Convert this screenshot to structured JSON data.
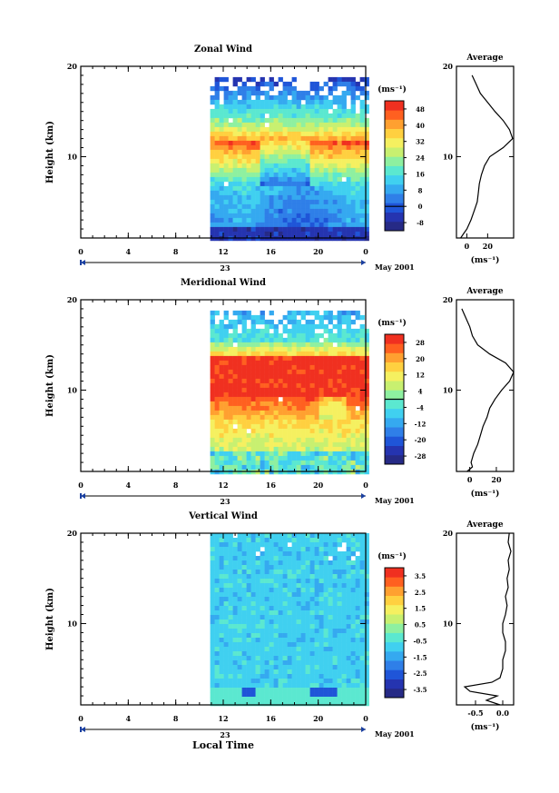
{
  "shared": {
    "xlabel": "Local Time",
    "date_label": "May 2001",
    "day_label": "23",
    "units": "(ms⁻¹)",
    "avg_title": "Average",
    "ylabel": "Height (km)",
    "colors": [
      "#262a86",
      "#2534b0",
      "#1f55d8",
      "#2f7fe8",
      "#35a9f0",
      "#40d0f0",
      "#5be8d0",
      "#8ef0a0",
      "#c8f070",
      "#f5f060",
      "#ffd040",
      "#ffa030",
      "#ff6020",
      "#f03020"
    ]
  },
  "chart_data": [
    {
      "type": "heatmap",
      "title": "Zonal Wind",
      "xticks": [
        "0",
        "4",
        "8",
        "12",
        "16",
        "20",
        "0"
      ],
      "xlim": [
        0,
        24
      ],
      "yticks": [
        "10",
        "20"
      ],
      "ylim": [
        1,
        20
      ],
      "data_start_hour": 10.9,
      "data_top_km": 18.8,
      "colorbar": {
        "ticks": [
          "48",
          "40",
          "32",
          "24",
          "16",
          "8",
          "0",
          "-8"
        ],
        "range": [
          -12,
          52
        ],
        "zero_line": 0
      },
      "avg_profile": {
        "title": "Average",
        "xticks": [
          "0",
          "20"
        ],
        "xlim": [
          -10,
          45
        ],
        "yticks": [
          "10",
          "20"
        ],
        "heights": [
          1,
          1.5,
          2,
          3,
          4,
          5,
          6,
          7,
          8,
          9,
          10,
          11,
          12,
          13,
          14,
          15,
          16,
          17,
          18,
          19
        ],
        "values": [
          -6,
          -3,
          0,
          4,
          7,
          10,
          11,
          12,
          14,
          17,
          22,
          35,
          44,
          41,
          35,
          27,
          20,
          13,
          9,
          5
        ]
      }
    },
    {
      "type": "heatmap",
      "title": "Meridional Wind",
      "xticks": [
        "0",
        "4",
        "8",
        "12",
        "16",
        "20",
        "0"
      ],
      "xlim": [
        0,
        24
      ],
      "yticks": [
        "10",
        "20"
      ],
      "ylim": [
        1,
        20
      ],
      "data_start_hour": 10.9,
      "data_top_km": 18.8,
      "colorbar": {
        "ticks": [
          "28",
          "20",
          "12",
          "4",
          "-4",
          "-12",
          "-20",
          "-28"
        ],
        "range": [
          -32,
          32
        ],
        "zero_line": 0
      },
      "avg_profile": {
        "title": "Average",
        "xticks": [
          "0",
          "20"
        ],
        "xlim": [
          -10,
          33
        ],
        "yticks": [
          "10",
          "20"
        ],
        "heights": [
          1,
          1.5,
          2,
          3,
          4,
          5,
          6,
          7,
          8,
          9,
          10,
          11,
          12,
          13,
          14,
          15,
          16,
          17,
          18,
          19
        ],
        "values": [
          -2,
          2,
          1,
          3,
          6,
          8,
          10,
          13,
          15,
          19,
          24,
          30,
          33,
          27,
          15,
          6,
          2,
          0,
          -3,
          -6
        ]
      }
    },
    {
      "type": "heatmap",
      "title": "Vertical Wind",
      "xticks": [
        "0",
        "4",
        "8",
        "12",
        "16",
        "20",
        "0"
      ],
      "xlim": [
        0,
        24
      ],
      "yticks": [
        "10",
        "20"
      ],
      "ylim": [
        1,
        20
      ],
      "data_start_hour": 10.9,
      "data_top_km": 20,
      "colorbar": {
        "ticks": [
          "3.5",
          "2.5",
          "1.5",
          "0.5",
          "-0.5",
          "-1.5",
          "-2.5",
          "-3.5"
        ],
        "range": [
          -4,
          4
        ],
        "zero_line": null
      },
      "avg_profile": {
        "title": "Average",
        "xticks": [
          "-0.5",
          "0.0"
        ],
        "xlim": [
          -0.85,
          0.2
        ],
        "yticks": [
          "10",
          "20"
        ],
        "heights": [
          1,
          1.5,
          2,
          2.5,
          3,
          3.5,
          4,
          5,
          6,
          7,
          8,
          9,
          10,
          11,
          12,
          13,
          14,
          15,
          16,
          17,
          18,
          19,
          20
        ],
        "values": [
          -0.05,
          -0.3,
          -0.1,
          -0.6,
          -0.7,
          -0.2,
          -0.05,
          0.0,
          0.0,
          0.05,
          0.05,
          0.0,
          0.0,
          0.05,
          0.08,
          0.05,
          0.1,
          0.08,
          0.12,
          0.1,
          0.15,
          0.1,
          0.12
        ]
      }
    }
  ]
}
